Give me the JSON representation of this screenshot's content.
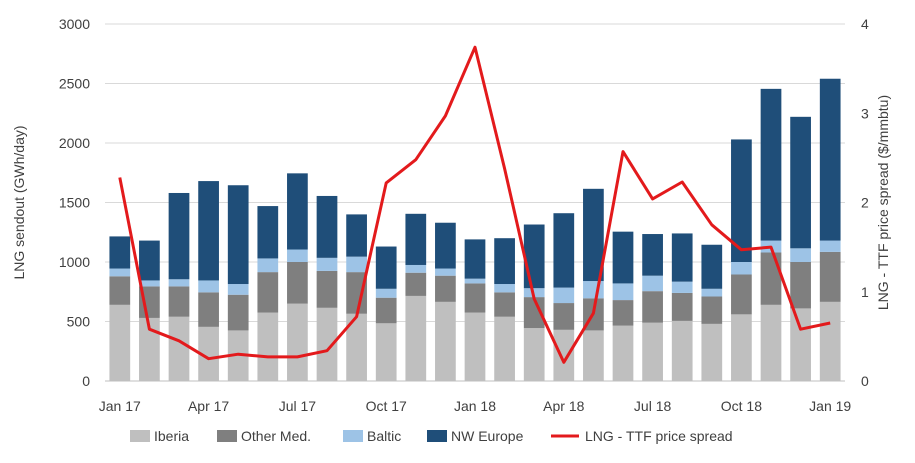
{
  "chart_data": {
    "type": "bar",
    "stacked": true,
    "categories": [
      "Jan 17",
      "Feb 17",
      "Mar 17",
      "Apr 17",
      "May 17",
      "Jun 17",
      "Jul 17",
      "Aug 17",
      "Sep 17",
      "Oct 17",
      "Nov 17",
      "Dec 17",
      "Jan 18",
      "Feb 18",
      "Mar 18",
      "Apr 18",
      "May 18",
      "Jun 18",
      "Jul 18",
      "Aug 18",
      "Sep 18",
      "Oct 18",
      "Nov 18",
      "Dec 18",
      "Jan 19"
    ],
    "x_tick_labels": [
      "Jan 17",
      "Apr 17",
      "Jul 17",
      "Oct 17",
      "Jan 18",
      "Apr 18",
      "Jul 18",
      "Oct 18",
      "Jan 19"
    ],
    "x_tick_index": [
      0,
      3,
      6,
      9,
      12,
      15,
      18,
      21,
      24
    ],
    "ylabel": "LNG sendout (GWh/day)",
    "ylim": [
      0,
      3000
    ],
    "yticks": [
      "0",
      "500",
      "1000",
      "1500",
      "2000",
      "2500",
      "3000"
    ],
    "y2label": "LNG - TTF price spread ($/mmbtu)",
    "y2lim": [
      0,
      4
    ],
    "y2ticks": [
      "0",
      "1",
      "2",
      "3",
      "4"
    ],
    "grid": true,
    "legend_position": "bottom",
    "series": [
      {
        "name": "Iberia",
        "color": "#bfbfbf",
        "kind": "bar",
        "values": [
          640,
          530,
          540,
          455,
          425,
          575,
          650,
          615,
          565,
          485,
          715,
          665,
          575,
          540,
          445,
          430,
          425,
          465,
          490,
          505,
          480,
          560,
          640,
          610,
          665
        ]
      },
      {
        "name": "Other Med.",
        "color": "#7f7f7f",
        "kind": "bar",
        "values": [
          240,
          265,
          255,
          290,
          300,
          340,
          350,
          310,
          350,
          215,
          195,
          220,
          245,
          205,
          260,
          225,
          270,
          215,
          265,
          235,
          230,
          335,
          440,
          390,
          420
        ]
      },
      {
        "name": "Baltic",
        "color": "#9dc3e6",
        "kind": "bar",
        "values": [
          65,
          50,
          60,
          100,
          90,
          115,
          105,
          110,
          130,
          75,
          65,
          60,
          40,
          70,
          75,
          130,
          145,
          140,
          130,
          95,
          65,
          105,
          100,
          115,
          95
        ]
      },
      {
        "name": "NW Europe",
        "color": "#1f4e79",
        "kind": "bar",
        "values": [
          270,
          335,
          725,
          835,
          830,
          440,
          640,
          520,
          355,
          355,
          430,
          385,
          330,
          385,
          535,
          625,
          775,
          435,
          350,
          405,
          370,
          1030,
          1275,
          1105,
          1360
        ]
      },
      {
        "name": "LNG - TTF price spread",
        "color": "#e31a1c",
        "kind": "line",
        "axis": "right",
        "values": [
          2.28,
          0.58,
          0.45,
          0.25,
          0.3,
          0.27,
          0.27,
          0.34,
          0.72,
          2.22,
          2.48,
          2.97,
          3.74,
          2.38,
          0.92,
          0.21,
          0.76,
          2.57,
          2.04,
          2.23,
          1.75,
          1.47,
          1.5,
          0.58,
          0.65
        ]
      }
    ]
  }
}
